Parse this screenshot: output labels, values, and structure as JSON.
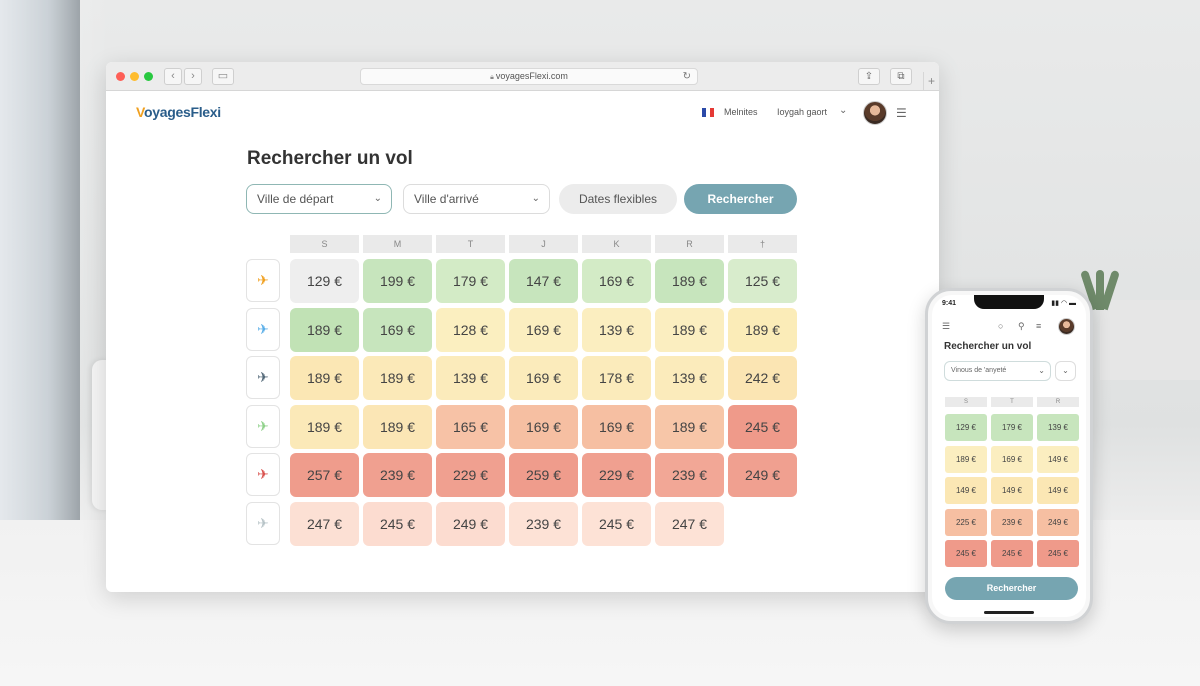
{
  "browser": {
    "url": "voyagesFlexi.com"
  },
  "site": {
    "logo_v": "V",
    "logo_rest": "oyagesFlexi",
    "nav_link_1": "Melnites",
    "nav_link_2": "Ioygah gaort",
    "flag_colors": [
      "#2b4aa8",
      "#ffffff",
      "#e53935"
    ]
  },
  "search": {
    "title": "Rechercher un vol",
    "departure_placeholder": "Ville de départ",
    "arrival_placeholder": "Ville d'arrivé",
    "flexible_dates": "Dates flexibles",
    "search_button": "Rechercher"
  },
  "grid": {
    "day_headers": [
      "S",
      "M",
      "T",
      "J",
      "K",
      "R",
      "†"
    ],
    "plane_colors": [
      "#f0a020",
      "#5aaee8",
      "#556a7a",
      "#8fd18a",
      "#d9534f",
      "#b8c4c8"
    ],
    "rows": [
      [
        {
          "p": "129 €",
          "c": "#eeeeee"
        },
        {
          "p": "199 €",
          "c": "#c7e5bd"
        },
        {
          "p": "179 €",
          "c": "#d3ebc6"
        },
        {
          "p": "147 €",
          "c": "#c7e5bd"
        },
        {
          "p": "169 €",
          "c": "#d3ebc6"
        },
        {
          "p": "189 €",
          "c": "#c7e5bd"
        },
        {
          "p": "125 €",
          "c": "#d8eccc"
        }
      ],
      [
        {
          "p": "189 €",
          "c": "#c1e2b5"
        },
        {
          "p": "169 €",
          "c": "#c7e5bd"
        },
        {
          "p": "128 €",
          "c": "#fbefc0"
        },
        {
          "p": "169 €",
          "c": "#fbeec0"
        },
        {
          "p": "139 €",
          "c": "#fbeec0"
        },
        {
          "p": "189 €",
          "c": "#fbeec0"
        },
        {
          "p": "189 €",
          "c": "#fbecb8"
        }
      ],
      [
        {
          "p": "189 €",
          "c": "#fbe7b4"
        },
        {
          "p": "189 €",
          "c": "#fbe9b8"
        },
        {
          "p": "139 €",
          "c": "#fbebbb"
        },
        {
          "p": "169 €",
          "c": "#fbebbb"
        },
        {
          "p": "178 €",
          "c": "#fbebbb"
        },
        {
          "p": "139 €",
          "c": "#fbebbb"
        },
        {
          "p": "242 €",
          "c": "#fbe5b3"
        }
      ],
      [
        {
          "p": "189 €",
          "c": "#fbe9b8"
        },
        {
          "p": "189 €",
          "c": "#fbe6b5"
        },
        {
          "p": "165 €",
          "c": "#f7c2a6"
        },
        {
          "p": "169 €",
          "c": "#f6bfa2"
        },
        {
          "p": "169 €",
          "c": "#f6bfa2"
        },
        {
          "p": "189 €",
          "c": "#f7c6a8"
        },
        {
          "p": "245 €",
          "c": "#ef9a8a"
        }
      ],
      [
        {
          "p": "257 €",
          "c": "#ef9c8c"
        },
        {
          "p": "239 €",
          "c": "#f0a090"
        },
        {
          "p": "229 €",
          "c": "#f0a090"
        },
        {
          "p": "259 €",
          "c": "#ef9c8c"
        },
        {
          "p": "229 €",
          "c": "#f0a090"
        },
        {
          "p": "239 €",
          "c": "#f2a796"
        },
        {
          "p": "249 €",
          "c": "#f0a090"
        }
      ],
      [
        {
          "p": "247 €",
          "c": "#fce0d4"
        },
        {
          "p": "245 €",
          "c": "#fcdcd0"
        },
        {
          "p": "249 €",
          "c": "#fcdcd0"
        },
        {
          "p": "239 €",
          "c": "#fde2d6"
        },
        {
          "p": "245 €",
          "c": "#fde2d6"
        },
        {
          "p": "247 €",
          "c": "#fde2d6"
        }
      ]
    ]
  },
  "phone": {
    "time": "9:41",
    "status": "▮▮ ◠ ▬",
    "title": "Rechercher un vol",
    "field_text": "Vinous de 'anyeté",
    "day_headers": [
      "S",
      "T",
      "R"
    ],
    "rows": [
      [
        {
          "p": "129 €",
          "c": "#c7e5bd"
        },
        {
          "p": "179 €",
          "c": "#c7e5bd"
        },
        {
          "p": "139 €",
          "c": "#c7e5bd"
        }
      ],
      [
        {
          "p": "189 €",
          "c": "#fbeec0"
        },
        {
          "p": "169 €",
          "c": "#fbeec0"
        },
        {
          "p": "149 €",
          "c": "#fbeec0"
        }
      ],
      [
        {
          "p": "149 €",
          "c": "#fbe7b4"
        },
        {
          "p": "149 €",
          "c": "#fbe7b4"
        },
        {
          "p": "149 €",
          "c": "#fbe7b4"
        }
      ],
      [
        {
          "p": "225 €",
          "c": "#f6bfa2"
        },
        {
          "p": "239 €",
          "c": "#f6bfa2"
        },
        {
          "p": "249 €",
          "c": "#f6bfa2"
        }
      ],
      [
        {
          "p": "245 €",
          "c": "#ef9a8a"
        },
        {
          "p": "245 €",
          "c": "#ef9a8a"
        },
        {
          "p": "245 €",
          "c": "#ef9a8a"
        }
      ]
    ],
    "search_button": "Rechercher"
  }
}
